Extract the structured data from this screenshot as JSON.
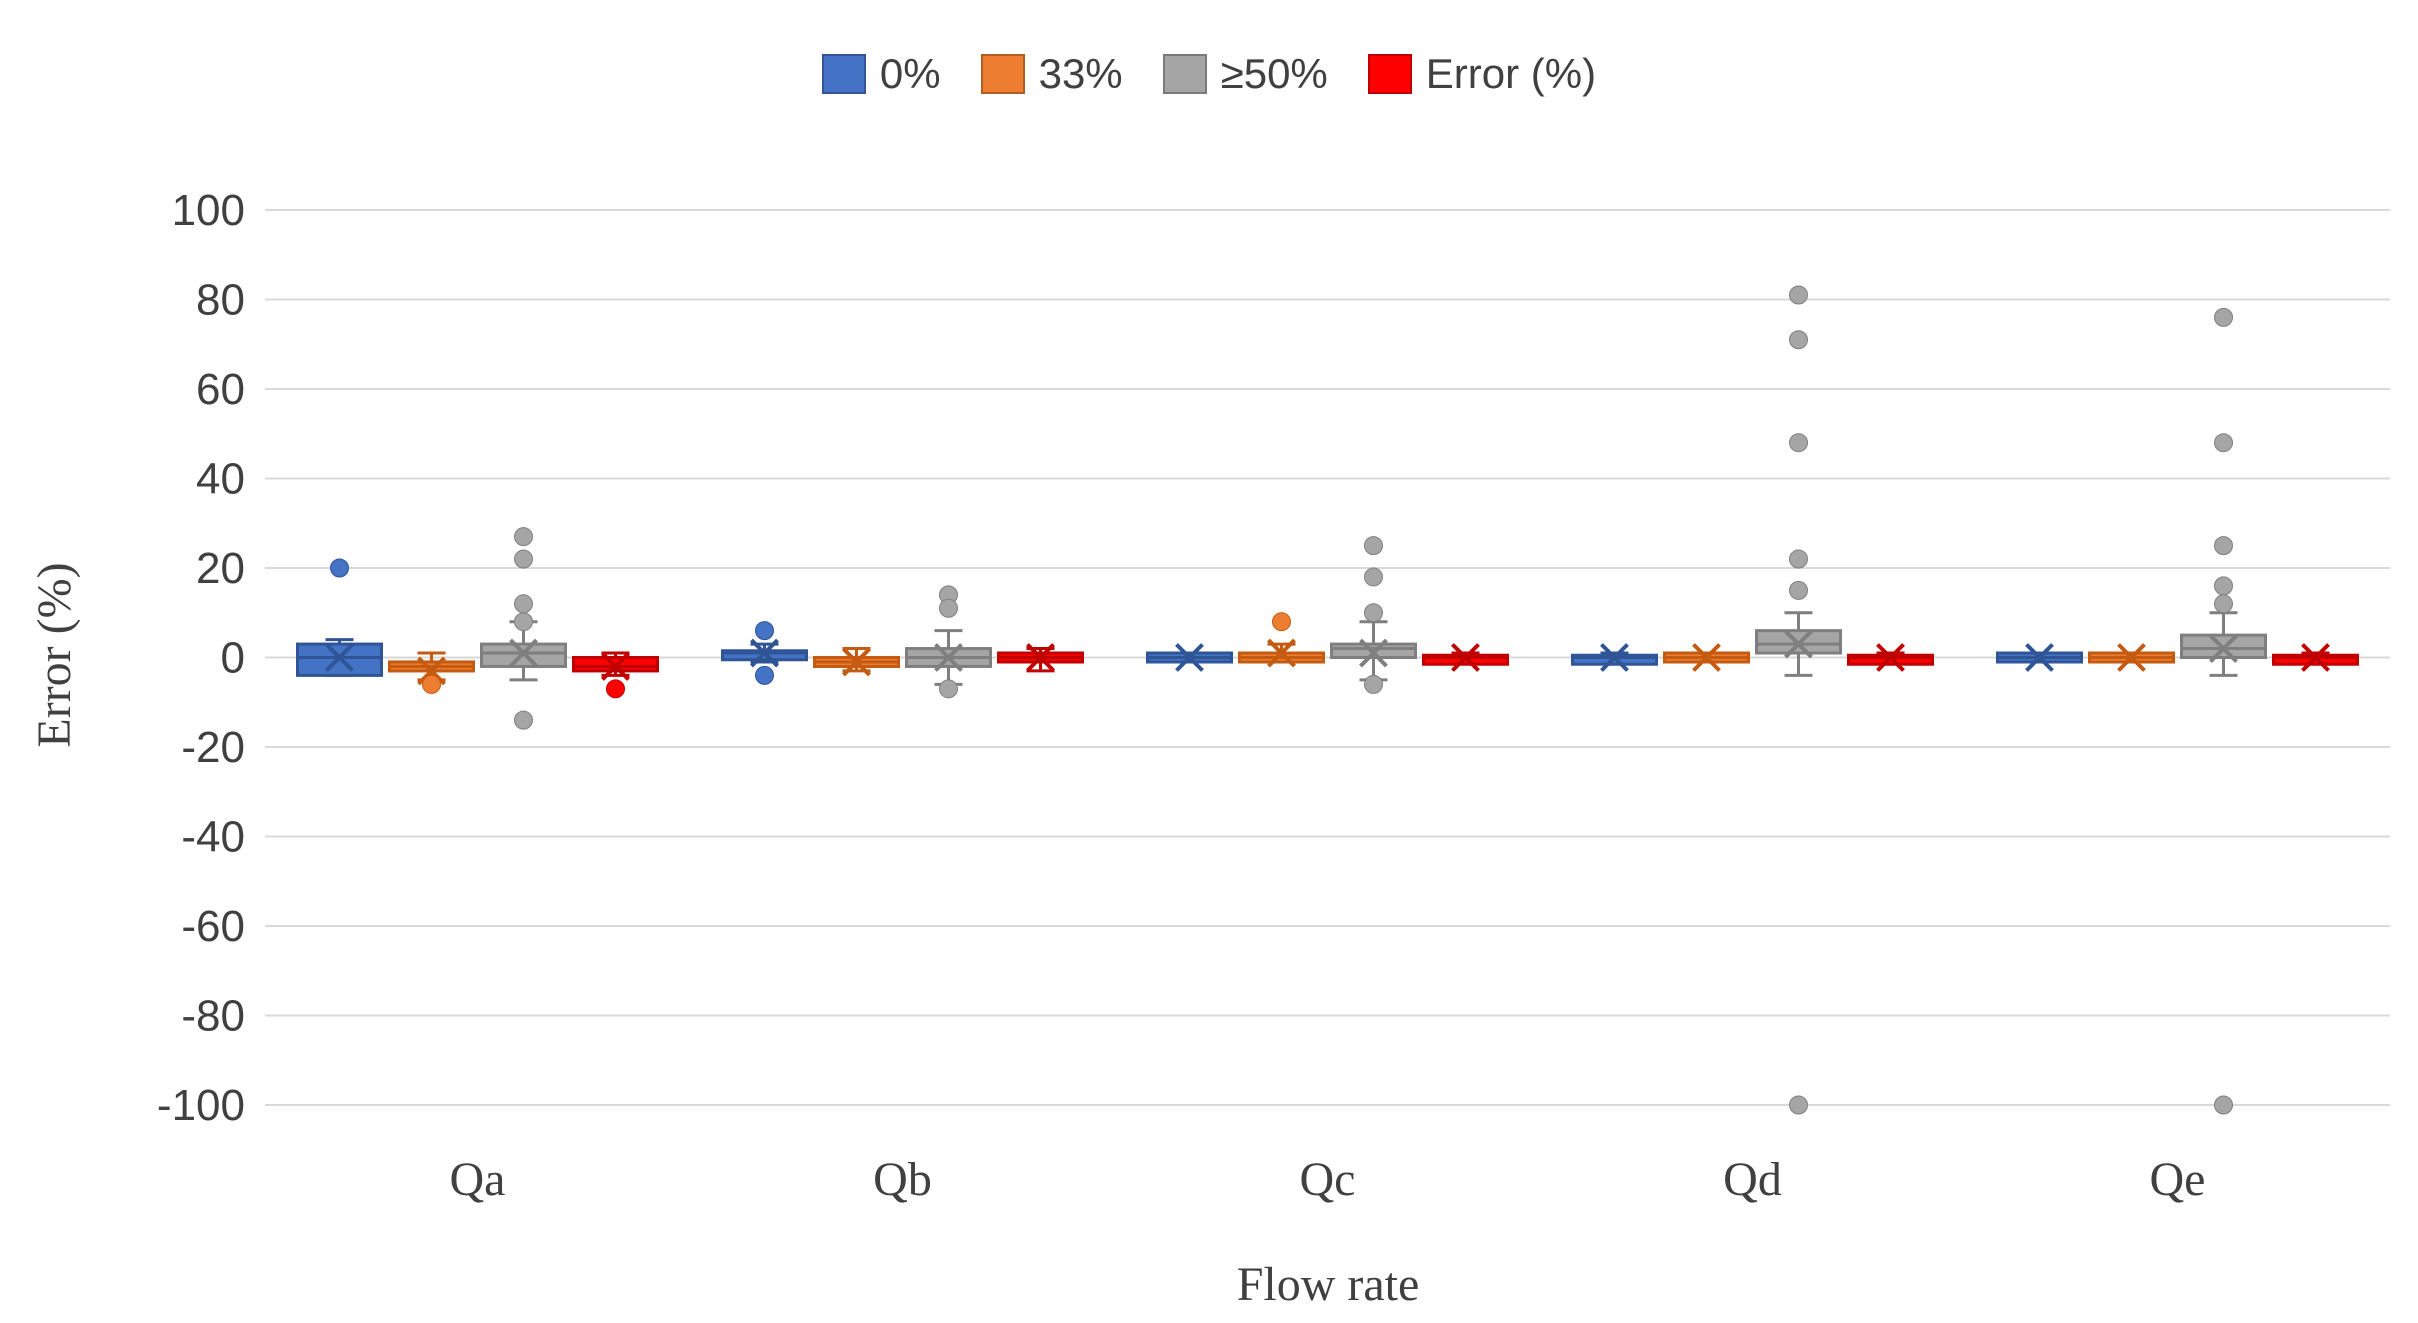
{
  "chart_data": {
    "type": "box",
    "title": "",
    "xlabel": "Flow rate",
    "ylabel": "Error (%)",
    "ylim": [
      -100,
      100
    ],
    "yticks": [
      100,
      80,
      60,
      40,
      20,
      0,
      -20,
      -40,
      -60,
      -80,
      -100
    ],
    "grid": true,
    "legend_position": "top-center",
    "categories": [
      "Qa",
      "Qb",
      "Qc",
      "Qd",
      "Qe"
    ],
    "series": [
      {
        "name": "0%",
        "color": "#4472C4",
        "edge": "#2F5597",
        "boxes": [
          {
            "category": "Qa",
            "min": -4,
            "q1": -4,
            "median": 0,
            "q3": 3,
            "max": 4,
            "mean": 0,
            "outliers": [
              20
            ]
          },
          {
            "category": "Qb",
            "min": -1,
            "q1": 0,
            "median": 1,
            "q3": 1,
            "max": 3,
            "mean": 1,
            "outliers": [
              6,
              -4
            ]
          },
          {
            "category": "Qc",
            "min": -1,
            "q1": -1,
            "median": 0,
            "q3": 1,
            "max": 1,
            "mean": 0,
            "outliers": []
          },
          {
            "category": "Qd",
            "min": -1,
            "q1": -1,
            "median": 0,
            "q3": 0,
            "max": 1,
            "mean": 0,
            "outliers": []
          },
          {
            "category": "Qe",
            "min": -1,
            "q1": -1,
            "median": 0,
            "q3": 1,
            "max": 1,
            "mean": 0,
            "outliers": []
          }
        ]
      },
      {
        "name": "33%",
        "color": "#ED7D31",
        "edge": "#C55A11",
        "boxes": [
          {
            "category": "Qa",
            "min": -5,
            "q1": -3,
            "median": -2,
            "q3": -1,
            "max": 1,
            "mean": -3,
            "outliers": [
              -6
            ]
          },
          {
            "category": "Qb",
            "min": -3,
            "q1": -2,
            "median": -1,
            "q3": 0,
            "max": 2,
            "mean": -1,
            "outliers": []
          },
          {
            "category": "Qc",
            "min": -1,
            "q1": -1,
            "median": 0,
            "q3": 1,
            "max": 3,
            "mean": 1,
            "outliers": [
              8
            ]
          },
          {
            "category": "Qd",
            "min": -1,
            "q1": -1,
            "median": 0,
            "q3": 1,
            "max": 1,
            "mean": 0,
            "outliers": []
          },
          {
            "category": "Qe",
            "min": -1,
            "q1": -1,
            "median": 0,
            "q3": 1,
            "max": 1,
            "mean": 0,
            "outliers": []
          }
        ]
      },
      {
        "name": "≥50%",
        "color": "#A5A5A5",
        "edge": "#7F7F7F",
        "boxes": [
          {
            "category": "Qa",
            "min": -5,
            "q1": -2,
            "median": 1,
            "q3": 3,
            "max": 8,
            "mean": 1,
            "outliers": [
              27,
              22,
              12,
              8,
              -14
            ]
          },
          {
            "category": "Qb",
            "min": -6,
            "q1": -2,
            "median": 0,
            "q3": 2,
            "max": 6,
            "mean": 0,
            "outliers": [
              14,
              11,
              -7
            ]
          },
          {
            "category": "Qc",
            "min": -5,
            "q1": 0,
            "median": 2,
            "q3": 3,
            "max": 8,
            "mean": 1,
            "outliers": [
              25,
              18,
              10,
              -6
            ]
          },
          {
            "category": "Qd",
            "min": -4,
            "q1": 1,
            "median": 3,
            "q3": 6,
            "max": 10,
            "mean": 3,
            "outliers": [
              81,
              71,
              48,
              22,
              15,
              -100
            ]
          },
          {
            "category": "Qe",
            "min": -4,
            "q1": 0,
            "median": 2,
            "q3": 5,
            "max": 10,
            "mean": 2,
            "outliers": [
              76,
              48,
              25,
              16,
              12,
              -100
            ]
          }
        ]
      },
      {
        "name": "Error (%)",
        "color": "#FF0000",
        "edge": "#C00000",
        "boxes": [
          {
            "category": "Qa",
            "min": -4,
            "q1": -3,
            "median": -2,
            "q3": 0,
            "max": 1,
            "mean": -2,
            "outliers": [
              -7
            ]
          },
          {
            "category": "Qb",
            "min": -3,
            "q1": -1,
            "median": 0,
            "q3": 1,
            "max": 2,
            "mean": 0,
            "outliers": []
          },
          {
            "category": "Qc",
            "min": -1,
            "q1": -1,
            "median": 0,
            "q3": 0,
            "max": 1,
            "mean": 0,
            "outliers": []
          },
          {
            "category": "Qd",
            "min": -1,
            "q1": -1,
            "median": 0,
            "q3": 0,
            "max": 1,
            "mean": 0,
            "outliers": []
          },
          {
            "category": "Qe",
            "min": -1,
            "q1": -1,
            "median": 0,
            "q3": 0,
            "max": 1,
            "mean": 0,
            "outliers": []
          }
        ]
      }
    ]
  }
}
